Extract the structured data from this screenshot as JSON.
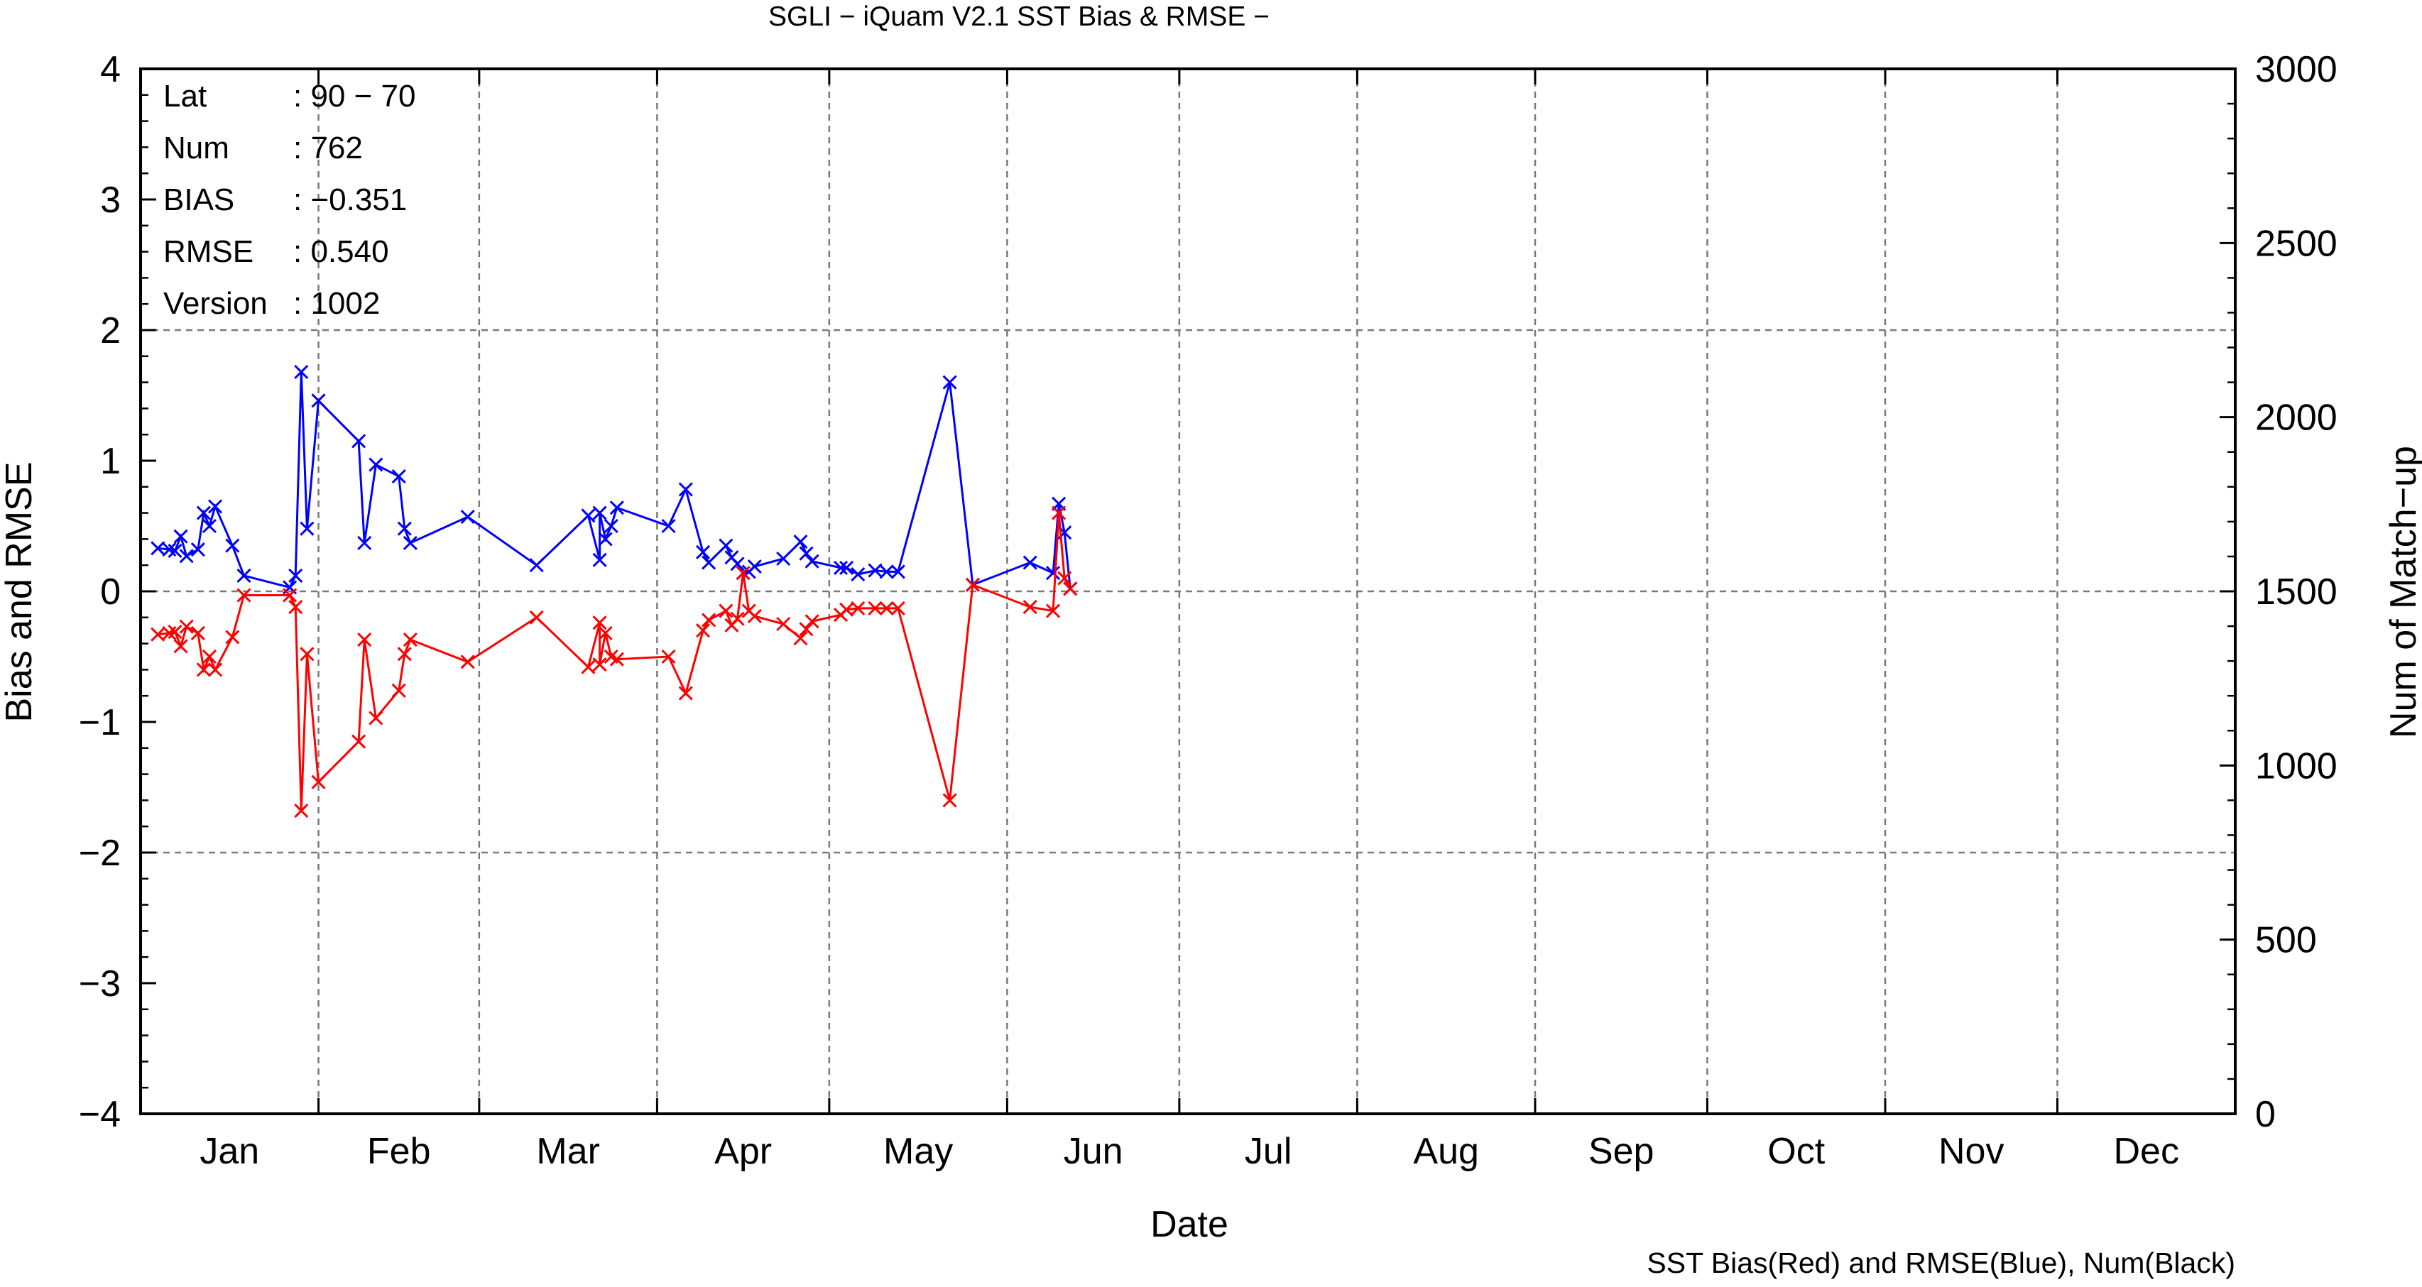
{
  "chart_data": {
    "type": "line",
    "title": "SGLI − iQuam V2.1 SST Bias & RMSE  −",
    "xlabel": "Date",
    "ylabel": "Bias and RMSE",
    "y2label": "Num of Match−up",
    "footnote": "SST Bias(Red) and RMSE(Blue), Num(Black)",
    "ylim": [
      -4,
      4
    ],
    "y2lim": [
      0,
      3000
    ],
    "yticks": [
      "4",
      "3",
      "2",
      "1",
      "0",
      "−1",
      "−2",
      "−3",
      "−4"
    ],
    "y2ticks": [
      "3000",
      "2500",
      "2000",
      "1500",
      "1000",
      "500",
      "0"
    ],
    "xlim": [
      "01-01",
      "12-31"
    ],
    "months": [
      "Jan",
      "Feb",
      "Mar",
      "Apr",
      "May",
      "Jun",
      "Jul",
      "Aug",
      "Sep",
      "Oct",
      "Nov",
      "Dec"
    ],
    "grid": true,
    "info": [
      {
        "label": "Lat",
        "value": ": 90 − 70"
      },
      {
        "label": "Num",
        "value": ": 762"
      },
      {
        "label": "BIAS",
        "value": ": −0.351"
      },
      {
        "label": "RMSE",
        "value": ": 0.540"
      },
      {
        "label": "Version",
        "value": ": 1002"
      }
    ],
    "series": [
      {
        "color": "#0000ff",
        "dates": [
          "01-04",
          "01-06",
          "01-07",
          "01-08",
          "01-09",
          "01-11",
          "01-12",
          "01-13",
          "01-14",
          "01-17",
          "01-19",
          "01-27",
          "01-28",
          "01-29",
          "01-30",
          "02-01",
          "02-08",
          "02-09",
          "02-11",
          "02-15",
          "02-16",
          "02-17",
          "02-27",
          "03-11",
          "03-20",
          "03-22",
          "03-22",
          "03-23",
          "03-24",
          "03-25",
          "04-03",
          "04-06",
          "04-09",
          "04-10",
          "04-13",
          "04-14",
          "04-15",
          "04-16",
          "04-17",
          "04-18",
          "04-23",
          "04-26",
          "04-27",
          "04-28",
          "05-03",
          "05-04",
          "05-06",
          "05-09",
          "05-11",
          "05-13",
          "05-22",
          "05-26",
          "06-05",
          "06-09",
          "06-10",
          "06-11",
          "06-12"
        ],
        "values": [
          0.33,
          0.32,
          0.31,
          0.42,
          0.27,
          0.32,
          0.6,
          0.5,
          0.65,
          0.35,
          0.12,
          0.03,
          0.12,
          1.68,
          0.48,
          1.46,
          1.15,
          0.37,
          0.97,
          0.88,
          0.48,
          0.37,
          0.57,
          0.2,
          0.58,
          0.24,
          0.6,
          0.4,
          0.5,
          0.64,
          0.5,
          0.78,
          0.3,
          0.22,
          0.35,
          0.26,
          0.21,
          0.14,
          0.15,
          0.19,
          0.25,
          0.38,
          0.29,
          0.23,
          0.18,
          0.18,
          0.13,
          0.16,
          0.15,
          0.15,
          1.6,
          0.05,
          0.22,
          0.14,
          0.67,
          0.45,
          0.02
        ]
      },
      {
        "color": "#ff0000",
        "dates": [
          "01-04",
          "01-06",
          "01-07",
          "01-08",
          "01-09",
          "01-11",
          "01-12",
          "01-13",
          "01-14",
          "01-17",
          "01-19",
          "01-27",
          "01-28",
          "01-29",
          "01-30",
          "02-01",
          "02-08",
          "02-09",
          "02-11",
          "02-15",
          "02-16",
          "02-17",
          "02-27",
          "03-11",
          "03-20",
          "03-22",
          "03-22",
          "03-23",
          "03-24",
          "03-25",
          "04-03",
          "04-06",
          "04-09",
          "04-10",
          "04-13",
          "04-14",
          "04-15",
          "04-16",
          "04-17",
          "04-18",
          "04-23",
          "04-26",
          "04-27",
          "04-28",
          "05-03",
          "05-04",
          "05-06",
          "05-09",
          "05-11",
          "05-13",
          "05-22",
          "05-26",
          "06-05",
          "06-09",
          "06-10",
          "06-11",
          "06-12"
        ],
        "values": [
          -0.33,
          -0.32,
          -0.31,
          -0.42,
          -0.27,
          -0.32,
          -0.6,
          -0.5,
          -0.6,
          -0.35,
          -0.03,
          -0.03,
          -0.12,
          -1.68,
          -0.48,
          -1.46,
          -1.15,
          -0.37,
          -0.97,
          -0.76,
          -0.48,
          -0.37,
          -0.54,
          -0.2,
          -0.58,
          -0.24,
          -0.56,
          -0.32,
          -0.5,
          -0.52,
          -0.5,
          -0.78,
          -0.3,
          -0.22,
          -0.15,
          -0.26,
          -0.21,
          0.14,
          -0.15,
          -0.19,
          -0.25,
          -0.36,
          -0.29,
          -0.23,
          -0.18,
          -0.14,
          -0.13,
          -0.13,
          -0.13,
          -0.13,
          -1.6,
          0.05,
          -0.12,
          -0.15,
          0.6,
          0.1,
          0.02
        ]
      }
    ]
  }
}
